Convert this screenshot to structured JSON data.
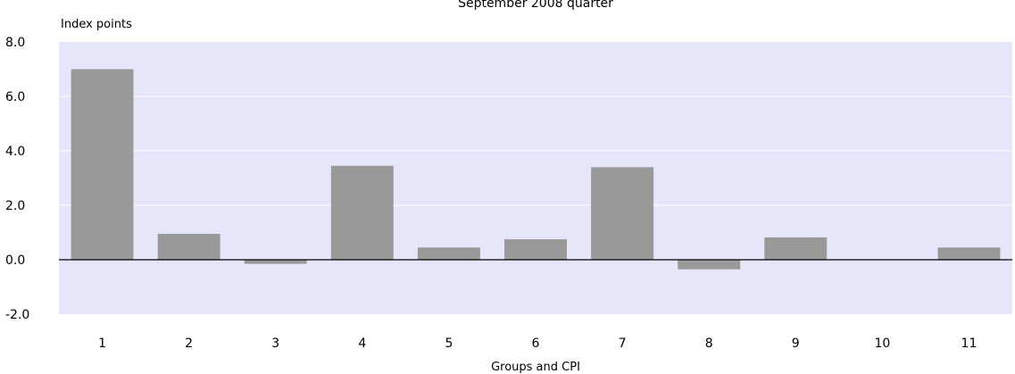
{
  "chart_data": {
    "type": "bar",
    "title": "September 2008 quarter",
    "ylabel": "Index points",
    "xlabel": "Groups and CPI",
    "categories": [
      "1",
      "2",
      "3",
      "4",
      "5",
      "6",
      "7",
      "8",
      "9",
      "10",
      "11"
    ],
    "values": [
      7.0,
      0.95,
      -0.15,
      3.45,
      0.45,
      0.75,
      3.4,
      -0.35,
      0.82,
      0.0,
      0.45
    ],
    "ylim": [
      -2.0,
      8.0
    ],
    "yticks": [
      "8.0",
      "6.0",
      "4.0",
      "2.0",
      "0.0",
      "-2.0"
    ],
    "ytick_values": [
      8,
      6,
      4,
      2,
      0,
      -2
    ],
    "grid": true,
    "colors": {
      "plot_background": "#e6e6fa",
      "bar": "#999999",
      "gridline": "#ffffff",
      "zero_line": "#000000"
    }
  }
}
